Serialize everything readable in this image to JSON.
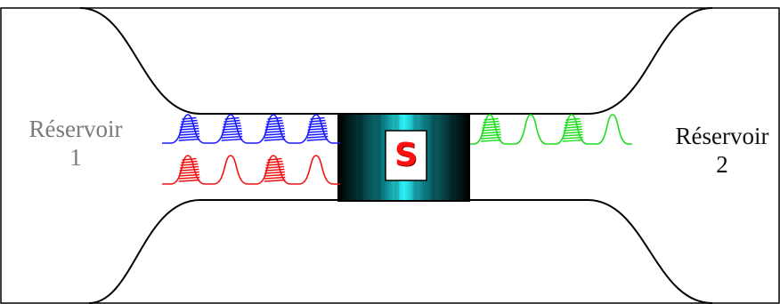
{
  "reservoir_left": {
    "name": "Réservoir",
    "number": "1"
  },
  "reservoir_right": {
    "name": "Réservoir",
    "number": "2"
  },
  "sample": {
    "label": "S"
  },
  "colors": {
    "outline": "#000000",
    "blue_wavepackets": "#1a1aff",
    "red_wavepackets": "#ee1111",
    "green_wavepackets": "#22dd22",
    "sample_gradient": [
      "#000000",
      "#063c40",
      "#0b7d84",
      "#14c4cc",
      "#2ef2f6",
      "#00ffff"
    ]
  },
  "wavepackets": {
    "blue_top_left": [
      "filled",
      "filled",
      "filled",
      "filled"
    ],
    "red_bottom_left": [
      "filled",
      "empty",
      "filled",
      "empty"
    ],
    "green_right": [
      "filled",
      "empty",
      "filled",
      "empty"
    ]
  }
}
